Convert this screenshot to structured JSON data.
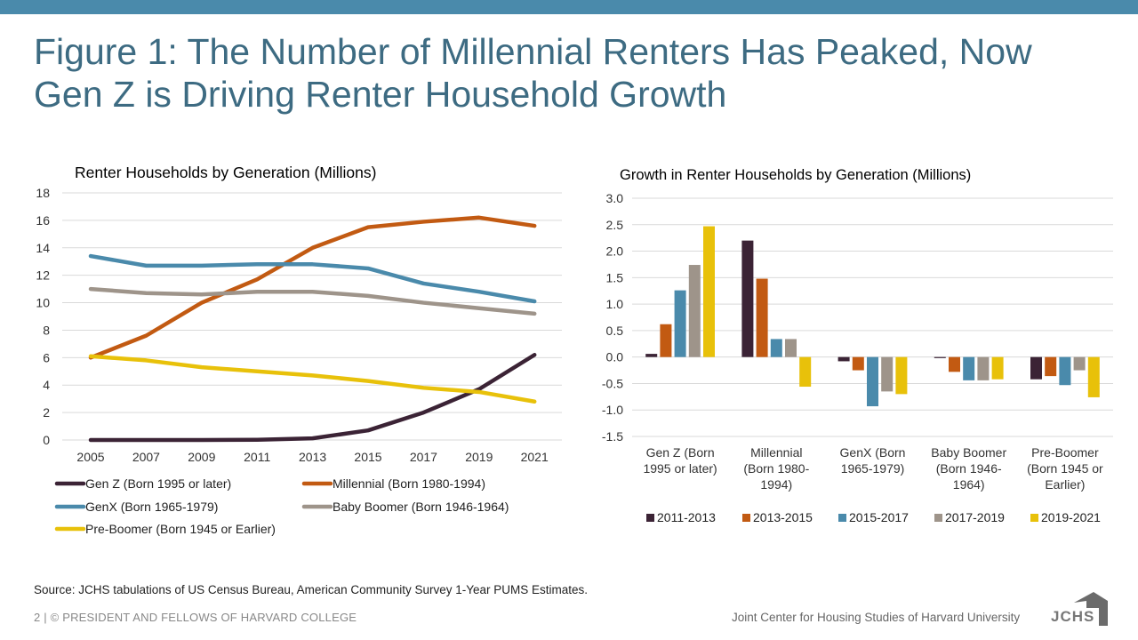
{
  "header": {
    "title_line1": "Figure 1: The Number of Millennial Renters Has Peaked, Now",
    "title_line2": "Gen Z is Driving Renter Household Growth",
    "accent_color": "#4a8aab",
    "title_color": "#3d6b82"
  },
  "chart_data": [
    {
      "type": "line",
      "title": "Renter Households  by Generation  (Millions)",
      "xlabel": "",
      "ylabel": "",
      "ylim": [
        0,
        18
      ],
      "yticks": [
        "0",
        "2",
        "4",
        "6",
        "8",
        "10",
        "12",
        "14",
        "16",
        "18"
      ],
      "x": [
        "2005",
        "2007",
        "2009",
        "2011",
        "2013",
        "2015",
        "2017",
        "2019",
        "2021"
      ],
      "grid": true,
      "legend_position": "bottom",
      "series": [
        {
          "name": "Gen Z (Born 1995 or later)",
          "color": "#3b2335",
          "values": [
            0,
            0,
            0,
            0.02,
            0.12,
            0.7,
            2.0,
            3.7,
            6.2
          ]
        },
        {
          "name": "Millennial (Born 1980-1994)",
          "color": "#c25a12",
          "values": [
            6.0,
            7.6,
            10.0,
            11.7,
            14.0,
            15.5,
            15.9,
            16.2,
            15.6
          ]
        },
        {
          "name": "GenX (Born 1965-1979)",
          "color": "#4a8aab",
          "values": [
            13.4,
            12.7,
            12.7,
            12.8,
            12.8,
            12.5,
            11.4,
            10.8,
            10.1
          ]
        },
        {
          "name": "Baby Boomer (Born 1946-1964)",
          "color": "#9e948a",
          "values": [
            11.0,
            10.7,
            10.6,
            10.8,
            10.8,
            10.5,
            10.0,
            9.6,
            9.2
          ]
        },
        {
          "name": "Pre-Boomer (Born 1945 or Earlier)",
          "color": "#e8c10a",
          "values": [
            6.1,
            5.8,
            5.3,
            5.0,
            4.7,
            4.3,
            3.8,
            3.5,
            2.8
          ]
        }
      ]
    },
    {
      "type": "bar",
      "title": "Growth in Renter Households by Generation (Millions)",
      "xlabel": "",
      "ylabel": "",
      "ylim": [
        -1.5,
        3.0
      ],
      "yticks": [
        "3.0",
        "2.5",
        "2.0",
        "1.5",
        "1.0",
        "0.5",
        "0.0",
        "-0.5",
        "-1.0",
        "-1.5"
      ],
      "grid": true,
      "legend_position": "bottom",
      "categories": [
        [
          "Gen Z (Born",
          "1995 or later)"
        ],
        [
          "Millennial",
          "(Born 1980-",
          "1994)"
        ],
        [
          "GenX (Born",
          "1965-1979)"
        ],
        [
          "Baby Boomer",
          "(Born 1946-",
          "1964)"
        ],
        [
          "Pre-Boomer",
          "(Born 1945 or",
          "Earlier)"
        ]
      ],
      "series": [
        {
          "name": "2011-2013",
          "color": "#3b2335",
          "values": [
            0.06,
            2.2,
            -0.08,
            -0.02,
            -0.42
          ]
        },
        {
          "name": "2013-2015",
          "color": "#c25a12",
          "values": [
            0.62,
            1.48,
            -0.25,
            -0.28,
            -0.36
          ]
        },
        {
          "name": "2015-2017",
          "color": "#4a8aab",
          "values": [
            1.26,
            0.34,
            -0.93,
            -0.44,
            -0.53
          ]
        },
        {
          "name": "2017-2019",
          "color": "#9e948a",
          "values": [
            1.74,
            0.34,
            -0.65,
            -0.44,
            -0.25
          ]
        },
        {
          "name": "2019-2021",
          "color": "#e8c10a",
          "values": [
            2.47,
            -0.56,
            -0.7,
            -0.42,
            -0.76
          ]
        }
      ]
    }
  ],
  "footer": {
    "source": "Source: JCHS tabulations of US Census Bureau, American Community Survey 1-Year PUMS Estimates.",
    "left": "2 | © PRESIDENT AND FELLOWS OF HARVARD COLLEGE",
    "right": "Joint Center for Housing Studies of Harvard University",
    "logo_text": "JCHS",
    "logo_icon": "house-icon"
  }
}
